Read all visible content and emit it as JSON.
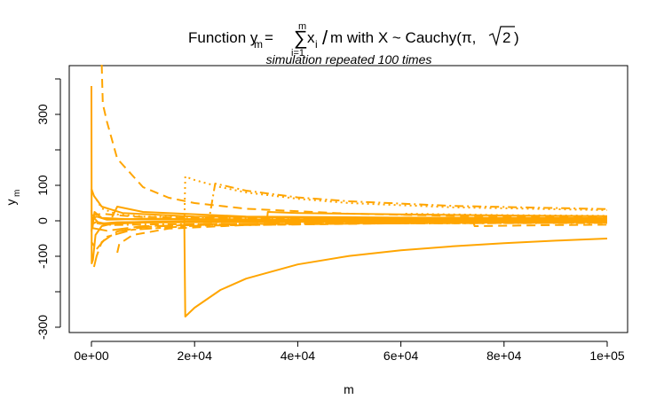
{
  "chart_data": {
    "type": "line",
    "title": {
      "prefix": "Function y",
      "prefix_sub": "m",
      "eq": " = ",
      "sum_upper": "m",
      "sum_lower": "i=1",
      "x_term": "x",
      "x_sub": "i",
      "slash": "/",
      "after_slash": "m with X ~ Cauchy(π,",
      "sqrt_arg": "2",
      "close_paren": ")"
    },
    "subtitle": "simulation repeated 100 times",
    "xlabel": "m",
    "ylabel": "y",
    "ylabel_sub": "m",
    "xlim": [
      0,
      100000
    ],
    "ylim": [
      -300,
      400
    ],
    "x_ticks": [
      {
        "value": 0,
        "label": "0e+00"
      },
      {
        "value": 20000,
        "label": "2e+04"
      },
      {
        "value": 40000,
        "label": "4e+04"
      },
      {
        "value": 60000,
        "label": "6e+04"
      },
      {
        "value": 80000,
        "label": "8e+04"
      },
      {
        "value": 100000,
        "label": "1e+05"
      }
    ],
    "y_ticks": [
      {
        "value": -300,
        "label": "-300"
      },
      {
        "value": -100,
        "label": "-100"
      },
      {
        "value": 0,
        "label": "0"
      },
      {
        "value": 100,
        "label": "100"
      },
      {
        "value": 300,
        "label": "300"
      }
    ],
    "grid": false,
    "line_color": "#FFA500",
    "series": [
      {
        "line": "solid",
        "points": [
          [
            0,
            380
          ],
          [
            50,
            -120
          ],
          [
            300,
            -110
          ],
          [
            800,
            -40
          ],
          [
            2000,
            -15
          ],
          [
            5000,
            -5
          ],
          [
            10000,
            -3
          ],
          [
            20000,
            -2
          ],
          [
            40000,
            -1
          ],
          [
            100000,
            -0.5
          ]
        ]
      },
      {
        "line": "dashed",
        "points": [
          [
            2000,
            440
          ],
          [
            2200,
            330
          ],
          [
            3000,
            280
          ],
          [
            5000,
            175
          ],
          [
            10000,
            95
          ],
          [
            15000,
            65
          ],
          [
            20000,
            50
          ],
          [
            30000,
            34
          ],
          [
            50000,
            20
          ],
          [
            70000,
            14
          ],
          [
            100000,
            10
          ]
        ]
      },
      {
        "line": "dotted",
        "points": [
          [
            18000,
            -15
          ],
          [
            18200,
            125
          ],
          [
            20000,
            115
          ],
          [
            25000,
            95
          ],
          [
            30000,
            80
          ],
          [
            40000,
            62
          ],
          [
            50000,
            50
          ],
          [
            70000,
            38
          ],
          [
            100000,
            30
          ]
        ]
      },
      {
        "line": "dotdash",
        "points": [
          [
            23000,
            20
          ],
          [
            24000,
            105
          ],
          [
            30000,
            85
          ],
          [
            40000,
            66
          ],
          [
            50000,
            55
          ],
          [
            70000,
            42
          ],
          [
            100000,
            33
          ]
        ]
      },
      {
        "line": "solid",
        "points": [
          [
            18000,
            0
          ],
          [
            18200,
            -270
          ],
          [
            20000,
            -245
          ],
          [
            25000,
            -195
          ],
          [
            30000,
            -163
          ],
          [
            40000,
            -123
          ],
          [
            50000,
            -99
          ],
          [
            60000,
            -83
          ],
          [
            70000,
            -72
          ],
          [
            80000,
            -63
          ],
          [
            90000,
            -56
          ],
          [
            100000,
            -50
          ]
        ]
      },
      {
        "line": "longdash",
        "points": [
          [
            500,
            -130
          ],
          [
            1000,
            -100
          ],
          [
            2000,
            -60
          ],
          [
            5000,
            -30
          ],
          [
            10000,
            -18
          ],
          [
            20000,
            -10
          ],
          [
            50000,
            -5
          ],
          [
            100000,
            -3
          ]
        ]
      },
      {
        "line": "solid",
        "points": [
          [
            4000,
            10
          ],
          [
            5000,
            40
          ],
          [
            10000,
            25
          ],
          [
            30000,
            12
          ],
          [
            60000,
            9
          ],
          [
            99000,
            8
          ]
        ]
      },
      {
        "line": "dashed",
        "points": [
          [
            5000,
            -90
          ],
          [
            5400,
            -65
          ],
          [
            8000,
            -40
          ],
          [
            15000,
            -22
          ],
          [
            30000,
            -12
          ],
          [
            60000,
            -7
          ],
          [
            100000,
            -5
          ]
        ]
      },
      {
        "line": "dotted",
        "points": [
          [
            1000,
            60
          ],
          [
            2000,
            35
          ],
          [
            5000,
            18
          ],
          [
            10000,
            12
          ],
          [
            30000,
            8
          ],
          [
            60000,
            7
          ],
          [
            100000,
            6
          ]
        ]
      },
      {
        "line": "twodash",
        "points": [
          [
            0,
            -60
          ],
          [
            1000,
            -80
          ],
          [
            3000,
            -45
          ],
          [
            8000,
            -25
          ],
          [
            20000,
            -14
          ],
          [
            50000,
            -8
          ],
          [
            100000,
            -5
          ]
        ]
      },
      {
        "line": "solid",
        "points": [
          [
            0,
            90
          ],
          [
            500,
            70
          ],
          [
            2000,
            40
          ],
          [
            6000,
            22
          ],
          [
            20000,
            12
          ],
          [
            50000,
            8
          ],
          [
            100000,
            5
          ]
        ]
      },
      {
        "line": "solid",
        "points": [
          [
            34000,
            -5
          ],
          [
            34200,
            25
          ],
          [
            40000,
            22
          ],
          [
            60000,
            18
          ],
          [
            80000,
            15
          ],
          [
            100000,
            13
          ]
        ]
      },
      {
        "line": "longdash",
        "points": [
          [
            0,
            -20
          ],
          [
            3000,
            -28
          ],
          [
            10000,
            -15
          ],
          [
            30000,
            -9
          ],
          [
            60000,
            -6
          ],
          [
            100000,
            -4
          ]
        ]
      },
      {
        "line": "dashed",
        "points": [
          [
            0,
            15
          ],
          [
            2000,
            20
          ],
          [
            8000,
            12
          ],
          [
            20000,
            8
          ],
          [
            50000,
            6
          ],
          [
            100000,
            5
          ]
        ]
      },
      {
        "line": "dotdash",
        "points": [
          [
            0,
            -5
          ],
          [
            4000,
            -12
          ],
          [
            12000,
            -10
          ],
          [
            40000,
            -8
          ],
          [
            100000,
            -6
          ]
        ]
      },
      {
        "line": "solid",
        "points": [
          [
            0,
            30
          ],
          [
            200,
            -20
          ],
          [
            600,
            25
          ],
          [
            2000,
            8
          ],
          [
            8000,
            4
          ],
          [
            30000,
            2
          ],
          [
            100000,
            1
          ]
        ]
      },
      {
        "line": "solid",
        "points": [
          [
            0,
            -30
          ],
          [
            400,
            10
          ],
          [
            1500,
            -8
          ],
          [
            5000,
            -4
          ],
          [
            20000,
            -2
          ],
          [
            100000,
            -1
          ]
        ]
      },
      {
        "line": "dotted",
        "points": [
          [
            60000,
            0
          ],
          [
            60200,
            20
          ],
          [
            80000,
            16
          ],
          [
            100000,
            14
          ]
        ]
      },
      {
        "line": "dashed",
        "points": [
          [
            74000,
            -2
          ],
          [
            74300,
            -15
          ],
          [
            90000,
            -12
          ],
          [
            100000,
            -11
          ]
        ]
      },
      {
        "line": "solid",
        "points": [
          [
            0,
            5
          ],
          [
            1000,
            12
          ],
          [
            3000,
            3
          ],
          [
            10000,
            6
          ],
          [
            30000,
            4
          ],
          [
            100000,
            3
          ]
        ]
      },
      {
        "line": "solid",
        "points": [
          [
            0,
            -10
          ],
          [
            1000,
            -3
          ],
          [
            3000,
            -9
          ],
          [
            10000,
            -5
          ],
          [
            30000,
            -3
          ],
          [
            100000,
            -2
          ]
        ]
      }
    ]
  }
}
